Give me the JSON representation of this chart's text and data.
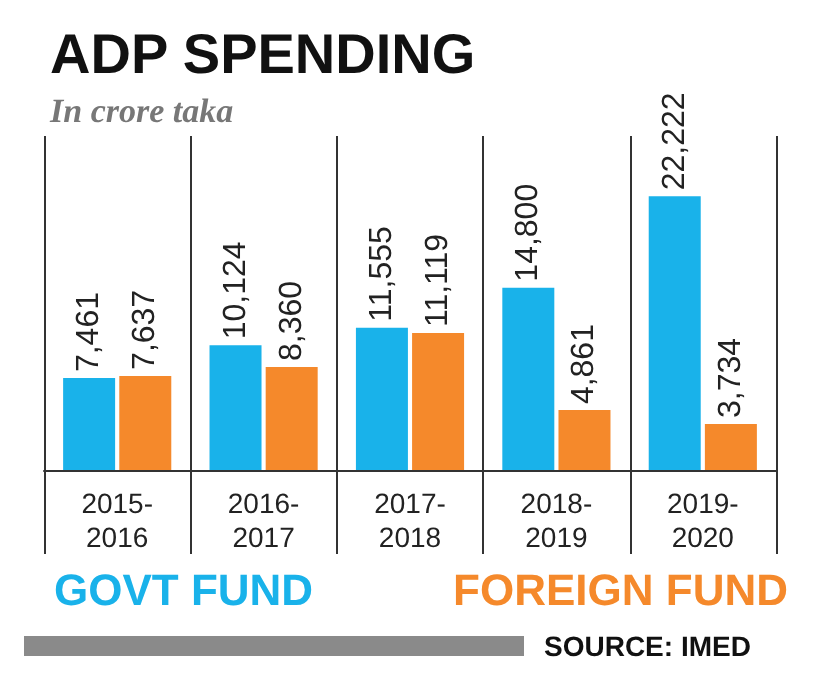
{
  "chart_data": {
    "type": "bar",
    "title": "ADP SPENDING",
    "subtitle": "In crore taka",
    "categories": [
      "2015-2016",
      "2016-2017",
      "2017-2018",
      "2018-2019",
      "2019-2020"
    ],
    "series": [
      {
        "name": "GOVT FUND",
        "color": "#19b2ea",
        "values": [
          7461,
          10124,
          11555,
          14800,
          22222
        ],
        "value_labels": [
          "7,461",
          "10,124",
          "11,555",
          "14,800",
          "22,222"
        ]
      },
      {
        "name": "FOREIGN FUND",
        "color": "#f5892b",
        "values": [
          7637,
          8360,
          11119,
          4861,
          3734
        ],
        "value_labels": [
          "7,637",
          "8,360",
          "11,119",
          "4,861",
          "3,734"
        ]
      }
    ],
    "tick_labels": "x",
    "grid": "x",
    "legend": "bottom",
    "annotations": [
      "SOURCE: IMED"
    ]
  }
}
